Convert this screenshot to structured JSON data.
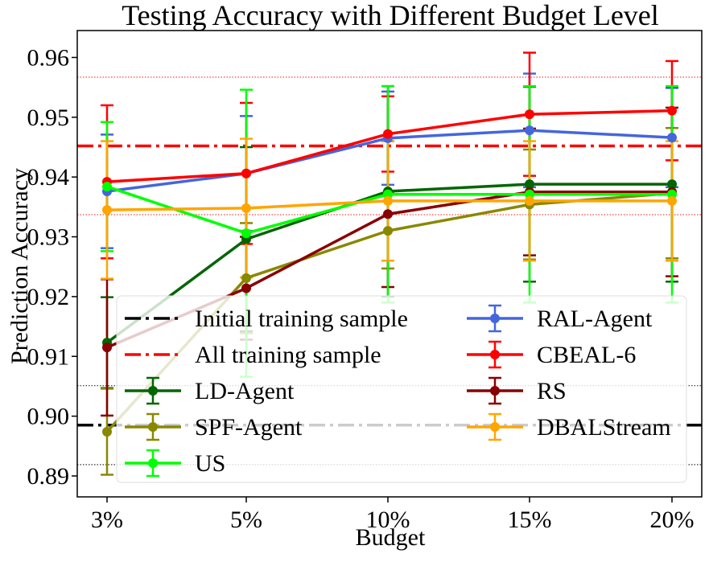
{
  "chart_data": {
    "type": "line",
    "title": "Testing Accuracy with Different Budget Level",
    "xlabel": "Budget",
    "ylabel": "Prediction Accuracy",
    "categories": [
      "3%",
      "5%",
      "10%",
      "15%",
      "20%"
    ],
    "ylim": [
      0.8865,
      0.9645
    ],
    "yticks": [
      0.89,
      0.9,
      0.91,
      0.92,
      0.93,
      0.94,
      0.95,
      0.96
    ],
    "ytick_labels": [
      "0.89",
      "0.90",
      "0.91",
      "0.92",
      "0.93",
      "0.94",
      "0.95",
      "0.96"
    ],
    "grid": false,
    "legend_position": "lower-center",
    "reference_lines": [
      {
        "name": "Initial training sample",
        "value": 0.8985,
        "color": "#000000",
        "style": "dashdot",
        "upper": 0.9051,
        "lower": 0.8919
      },
      {
        "name": "All training sample",
        "value": 0.9452,
        "color": "#ff0000",
        "style": "dashdot",
        "upper": 0.9567,
        "lower": 0.9337
      }
    ],
    "series": [
      {
        "name": "RAL-Agent",
        "color": "#4466dd",
        "values": [
          0.9376,
          0.9406,
          0.9465,
          0.9478,
          0.9466
        ],
        "errors": [
          0.0095,
          0.0096,
          0.0078,
          0.0095,
          0.0083
        ]
      },
      {
        "name": "CBEAL-6",
        "color": "#ff0000",
        "values": [
          0.9392,
          0.9406,
          0.9472,
          0.9505,
          0.9511
        ],
        "errors": [
          0.0128,
          0.0118,
          0.0063,
          0.0103,
          0.0083
        ]
      },
      {
        "name": "LD-Agent",
        "color": "#006600",
        "values": [
          0.9123,
          0.9296,
          0.9376,
          0.9388,
          0.9388
        ],
        "errors": [
          0.0076,
          0.0154,
          0.0176,
          0.0163,
          0.0163
        ]
      },
      {
        "name": "SPF-Agent",
        "color": "#888800",
        "values": [
          0.8974,
          0.9231,
          0.931,
          0.9354,
          0.9373
        ],
        "errors": [
          0.0072,
          0.0092,
          0.0063,
          0.0092,
          0.0109
        ]
      },
      {
        "name": "RS",
        "color": "#880000",
        "values": [
          0.9115,
          0.9214,
          0.9338,
          0.9375,
          0.9375
        ],
        "errors": [
          0.0114,
          0.0086,
          0.0122,
          0.0106,
          0.0141
        ]
      },
      {
        "name": "US",
        "color": "#00ff00",
        "values": [
          0.9384,
          0.9306,
          0.9371,
          0.9371,
          0.9371
        ],
        "errors": [
          0.0108,
          0.024,
          0.0181,
          0.0181,
          0.0181
        ]
      },
      {
        "name": "DBALStream",
        "color": "#ffa500",
        "values": [
          0.9345,
          0.9348,
          0.936,
          0.936,
          0.936
        ],
        "errors": [
          0.0115,
          0.0116,
          0.01,
          0.01,
          0.01
        ]
      }
    ]
  }
}
